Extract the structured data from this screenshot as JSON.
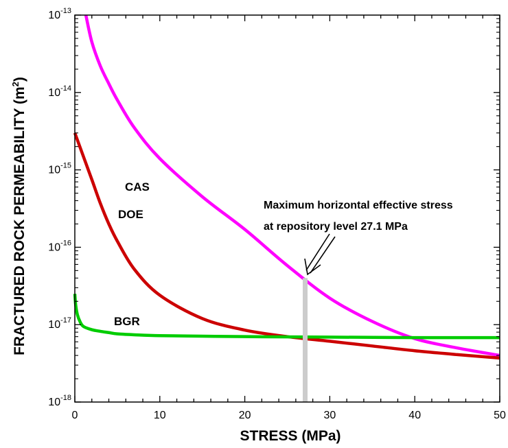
{
  "chart_data": {
    "type": "line",
    "xlabel": "STRESS (MPa)",
    "ylabel": "FRACTURED ROCK PERMEABILITY (m",
    "ylabel_sup": "2",
    "ylabel_close": ")",
    "xlim": [
      0,
      50
    ],
    "ylim_exponent": [
      -18,
      -13
    ],
    "yscale": "log",
    "x_ticks": [
      "0",
      "10",
      "20",
      "30",
      "40",
      "50"
    ],
    "y_ticks": [
      {
        "base": "10",
        "exp": "-18"
      },
      {
        "base": "10",
        "exp": "-17"
      },
      {
        "base": "10",
        "exp": "-16"
      },
      {
        "base": "10",
        "exp": "-15"
      },
      {
        "base": "10",
        "exp": "-14"
      },
      {
        "base": "10",
        "exp": "-13"
      }
    ],
    "grid": false,
    "series": [
      {
        "name": "CAS",
        "color": "#ff00ff",
        "x": [
          1.3,
          2,
          3,
          4,
          5,
          7,
          10,
          15,
          20,
          25,
          30,
          35,
          40,
          45,
          50
        ],
        "y": [
          1e-13,
          4.5e-14,
          2.2e-14,
          1.3e-14,
          8e-15,
          3.5e-15,
          1.4e-15,
          4.5e-16,
          1.7e-16,
          5.8e-17,
          2.2e-17,
          1.1e-17,
          6.6e-18,
          5e-18,
          4e-18
        ]
      },
      {
        "name": "DOE",
        "color": "#cc0000",
        "x": [
          0,
          1,
          2,
          3,
          4,
          5,
          7,
          10,
          15,
          20,
          25,
          30,
          35,
          40,
          45,
          50
        ],
        "y": [
          3e-15,
          1.5e-15,
          7.5e-16,
          3.7e-16,
          2e-16,
          1.2e-16,
          5.2e-17,
          2.4e-17,
          1.2e-17,
          8.5e-18,
          7e-18,
          6.1e-18,
          5.3e-18,
          4.6e-18,
          4.1e-18,
          3.7e-18
        ]
      },
      {
        "name": "BGR",
        "color": "#00cc00",
        "x": [
          0,
          0.1,
          0.3,
          0.6,
          1,
          2,
          3,
          4,
          5,
          7,
          10,
          15,
          20,
          30,
          40,
          50
        ],
        "y": [
          2.5e-17,
          1.8e-17,
          1.35e-17,
          1.1e-17,
          9.5e-18,
          8.6e-18,
          8.2e-18,
          7.9e-18,
          7.6e-18,
          7.4e-18,
          7.2e-18,
          7.1e-18,
          7e-18,
          6.9e-18,
          6.8e-18,
          6.8e-18
        ]
      }
    ],
    "annotation": {
      "line1": "Maximum horizontal effective stress",
      "line2": "at repository level 27.1 MPa",
      "marker_x": 27.1,
      "marker_y_top": 4e-17,
      "marker_color": "#cccccc"
    }
  }
}
